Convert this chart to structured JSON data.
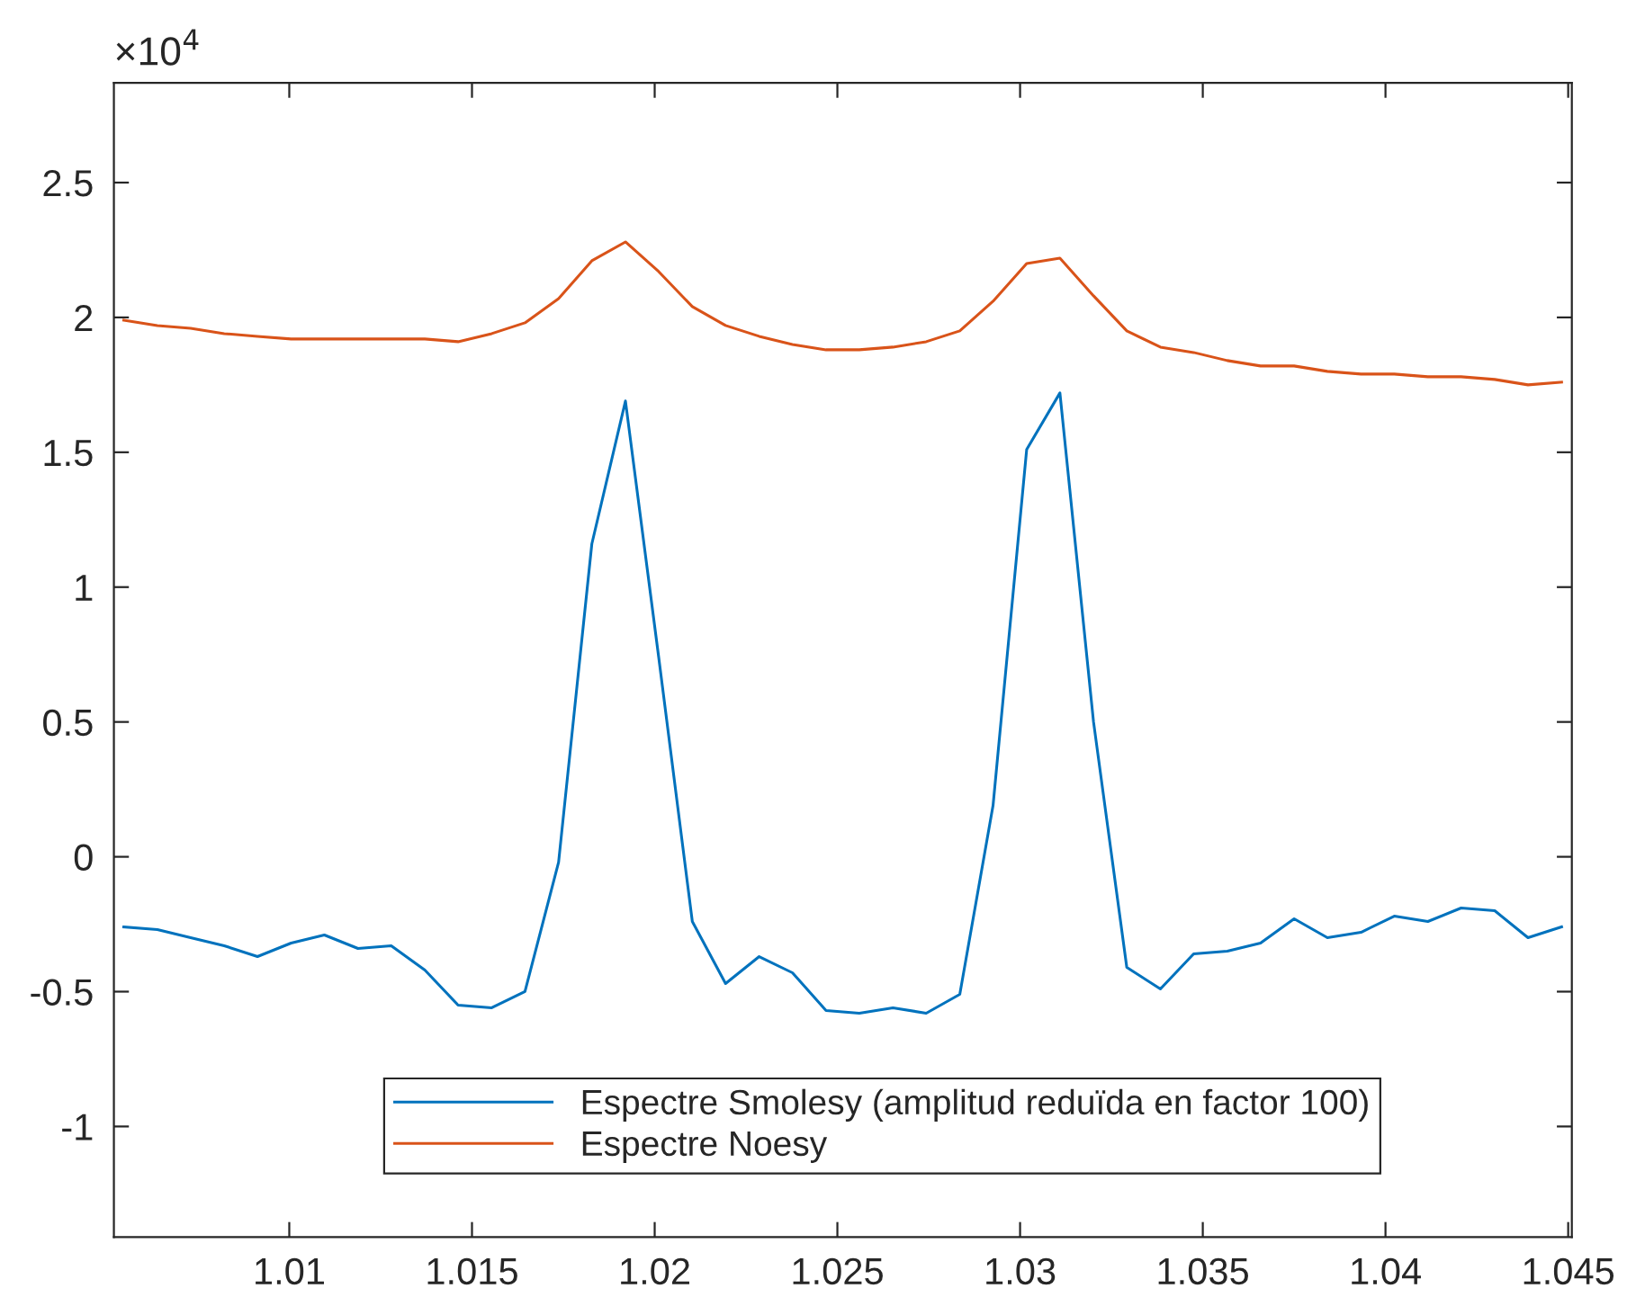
{
  "chart_data": {
    "type": "line",
    "x": [
      1.00547,
      1.00639,
      1.0073,
      1.00822,
      1.00913,
      1.01005,
      1.01096,
      1.01188,
      1.01279,
      1.01371,
      1.01462,
      1.01554,
      1.01645,
      1.01737,
      1.01828,
      1.0192,
      1.02011,
      1.02103,
      1.02194,
      1.02286,
      1.02377,
      1.02469,
      1.0256,
      1.02652,
      1.02743,
      1.02835,
      1.02926,
      1.03018,
      1.03109,
      1.03201,
      1.03292,
      1.03384,
      1.03475,
      1.03567,
      1.03658,
      1.0375,
      1.03841,
      1.03933,
      1.04024,
      1.04116,
      1.04207,
      1.04299,
      1.0439,
      1.04482
    ],
    "series": [
      {
        "name": "Espectre Smolesy (amplitud reduïda en factor 100)",
        "color": "#0072bd",
        "values": [
          -0.26,
          -0.27,
          -0.3,
          -0.33,
          -0.37,
          -0.32,
          -0.29,
          -0.34,
          -0.33,
          -0.42,
          -0.55,
          -0.56,
          -0.5,
          -0.02,
          1.16,
          1.69,
          0.74,
          -0.24,
          -0.47,
          -0.37,
          -0.43,
          -0.57,
          -0.58,
          -0.56,
          -0.58,
          -0.51,
          0.19,
          1.51,
          1.72,
          0.5,
          -0.41,
          -0.49,
          -0.36,
          -0.35,
          -0.32,
          -0.23,
          -0.3,
          -0.28,
          -0.22,
          -0.24,
          -0.19,
          -0.2,
          -0.3,
          -0.26
        ]
      },
      {
        "name": "Espectre Noesy",
        "color": "#d95319",
        "values": [
          1.99,
          1.97,
          1.96,
          1.94,
          1.93,
          1.92,
          1.92,
          1.92,
          1.92,
          1.92,
          1.91,
          1.94,
          1.98,
          2.07,
          2.21,
          2.28,
          2.17,
          2.04,
          1.97,
          1.93,
          1.9,
          1.88,
          1.88,
          1.89,
          1.91,
          1.95,
          2.06,
          2.2,
          2.22,
          2.08,
          1.95,
          1.89,
          1.87,
          1.84,
          1.82,
          1.82,
          1.8,
          1.79,
          1.79,
          1.78,
          1.78,
          1.77,
          1.75,
          1.76
        ]
      }
    ],
    "xlim": [
      1.0052,
      1.0451
    ],
    "xticks": [
      1.01,
      1.015,
      1.02,
      1.025,
      1.03,
      1.035,
      1.04,
      1.045
    ],
    "ylim": [
      -1.41,
      2.87
    ],
    "yticks": [
      -1,
      -0.5,
      0,
      0.5,
      1,
      1.5,
      2,
      2.5
    ],
    "annotations": [
      "×10$^{4}$"
    ],
    "legend": "bottom",
    "grid": false,
    "marker": "none",
    "line_style": "solid"
  }
}
